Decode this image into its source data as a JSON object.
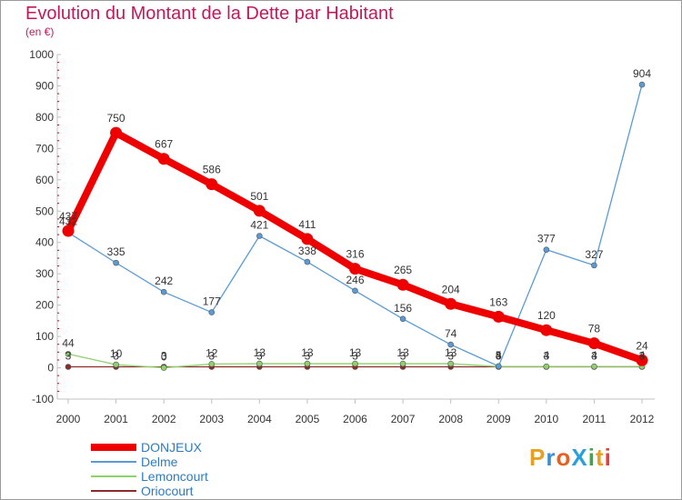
{
  "title": "Evolution du Montant de la Dette par Habitant",
  "unit": "(en €)",
  "logo": {
    "text": "ProXiti",
    "letter_colors": [
      "#e8a020",
      "#3b8fd0",
      "#e86020",
      "#2aa0d8",
      "#40a848",
      "#e8a020",
      "#e84040"
    ]
  },
  "chart_data": {
    "type": "line",
    "x": [
      "2000",
      "2001",
      "2002",
      "2003",
      "2004",
      "2005",
      "2006",
      "2007",
      "2008",
      "2009",
      "2010",
      "2011",
      "2012"
    ],
    "ylim": [
      -100,
      1000
    ],
    "yticks": [
      "-100",
      "0",
      "100",
      "200",
      "300",
      "400",
      "500",
      "600",
      "700",
      "800",
      "900",
      "1000"
    ],
    "grid": false,
    "legend_placement": "bottom-left",
    "series": [
      {
        "name": "Oriocourt",
        "color": "#8b2c2c",
        "values": [
          3,
          3,
          3,
          3,
          3,
          3,
          3,
          3,
          3,
          3,
          3,
          3,
          3
        ],
        "labels": [
          "3",
          "3",
          "3",
          "3",
          "3",
          "3",
          "3",
          "3",
          "3",
          "3",
          "3",
          "3",
          "3"
        ]
      },
      {
        "name": "Lemoncourt",
        "color": "#8fd16b",
        "values": [
          44,
          10,
          0,
          12,
          13,
          13,
          13,
          13,
          13,
          4,
          4,
          4,
          4
        ],
        "labels": [
          "44",
          "10",
          "0",
          "12",
          "13",
          "13",
          "13",
          "13",
          "13",
          "4",
          "4",
          "4",
          "4"
        ]
      },
      {
        "name": "Delme",
        "color": "#5b9bd5",
        "values": [
          432,
          335,
          242,
          177,
          421,
          338,
          246,
          156,
          74,
          5,
          377,
          327,
          904
        ],
        "labels": [
          "432",
          "335",
          "242",
          "177",
          "421",
          "338",
          "246",
          "156",
          "74",
          "5",
          "377",
          "327",
          "904"
        ]
      },
      {
        "name": "DONJEUX",
        "color": "#ee0000",
        "values": [
          437,
          750,
          667,
          586,
          501,
          411,
          316,
          265,
          204,
          163,
          120,
          78,
          24
        ],
        "labels": [
          "437",
          "750",
          "667",
          "586",
          "501",
          "411",
          "316",
          "265",
          "204",
          "163",
          "120",
          "78",
          "24"
        ]
      }
    ]
  }
}
